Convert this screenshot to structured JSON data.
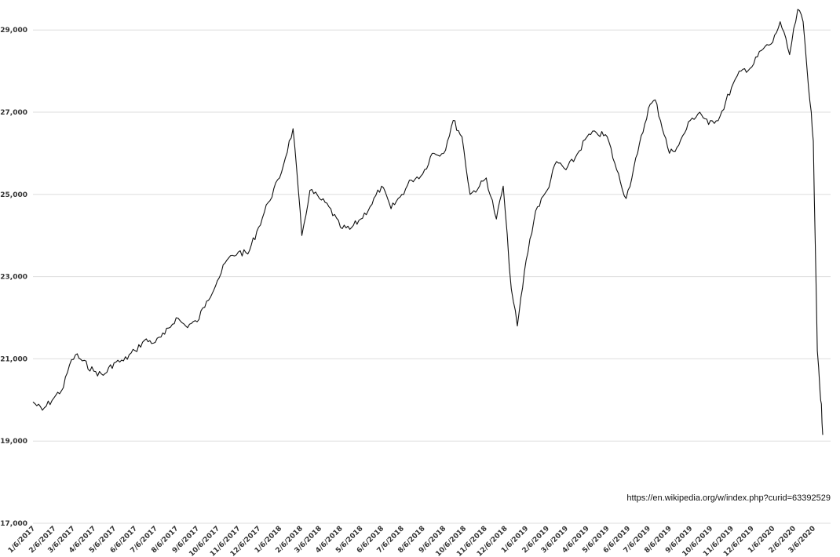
{
  "chart_data": {
    "type": "line",
    "title": "",
    "xlabel": "",
    "ylabel": "",
    "source_note": "https://en.wikipedia.org/w/index.php?curid=63392529",
    "ylim": [
      17000,
      29600
    ],
    "y_ticks": [
      "17,000",
      "19,000",
      "21,000",
      "23,000",
      "25,000",
      "27,000",
      "29,000"
    ],
    "y_tick_values": [
      17000,
      19000,
      21000,
      23000,
      25000,
      27000,
      29000
    ],
    "x_ticks": [
      "1/6/2017",
      "2/6/2017",
      "3/6/2017",
      "4/6/2017",
      "5/6/2017",
      "6/6/2017",
      "7/6/2017",
      "8/6/2017",
      "9/6/2017",
      "10/6/2017",
      "11/6/2017",
      "12/6/2017",
      "1/6/2018",
      "2/6/2018",
      "3/6/2018",
      "4/6/2018",
      "5/6/2018",
      "6/6/2018",
      "7/6/2018",
      "8/6/2018",
      "9/6/2018",
      "10/6/2018",
      "11/6/2018",
      "12/6/2018",
      "1/6/2019",
      "2/6/2019",
      "3/6/2019",
      "4/6/2019",
      "5/6/2019",
      "6/6/2019",
      "7/6/2019",
      "8/6/2019",
      "9/6/2019",
      "10/6/2019",
      "11/6/2019",
      "12/6/2019",
      "1/6/2020",
      "2/6/2020",
      "3/6/2020"
    ],
    "grid": true,
    "line_color": "#111111",
    "series": [
      {
        "x": [
          "2017-01-06",
          "2017-01-20",
          "2017-02-06",
          "2017-02-20",
          "2017-03-01",
          "2017-03-10",
          "2017-03-20",
          "2017-04-06",
          "2017-04-20",
          "2017-05-06",
          "2017-05-20",
          "2017-06-06",
          "2017-06-20",
          "2017-07-06",
          "2017-07-20",
          "2017-08-06",
          "2017-08-20",
          "2017-09-06",
          "2017-09-20",
          "2017-10-06",
          "2017-10-20",
          "2017-11-06",
          "2017-11-20",
          "2017-12-06",
          "2017-12-20",
          "2018-01-06",
          "2018-01-26",
          "2018-02-08",
          "2018-02-20",
          "2018-03-06",
          "2018-03-20",
          "2018-04-06",
          "2018-04-20",
          "2018-05-06",
          "2018-05-20",
          "2018-06-06",
          "2018-06-20",
          "2018-07-06",
          "2018-07-20",
          "2018-08-06",
          "2018-08-20",
          "2018-09-06",
          "2018-09-20",
          "2018-10-03",
          "2018-10-15",
          "2018-10-29",
          "2018-11-08",
          "2018-11-23",
          "2018-12-03",
          "2018-12-15",
          "2018-12-24",
          "2019-01-06",
          "2019-01-20",
          "2019-02-06",
          "2019-02-20",
          "2019-03-06",
          "2019-03-20",
          "2019-04-06",
          "2019-04-20",
          "2019-05-06",
          "2019-05-20",
          "2019-06-03",
          "2019-06-20",
          "2019-07-06",
          "2019-07-16",
          "2019-08-06",
          "2019-08-20",
          "2019-09-06",
          "2019-09-20",
          "2019-10-03",
          "2019-10-20",
          "2019-11-06",
          "2019-11-20",
          "2019-12-06",
          "2019-12-20",
          "2020-01-06",
          "2020-01-17",
          "2020-01-31",
          "2020-02-12",
          "2020-02-20",
          "2020-02-28",
          "2020-03-03",
          "2020-03-06",
          "2020-03-09",
          "2020-03-12",
          "2020-03-16",
          "2020-03-18",
          "2020-03-20"
        ],
        "values": [
          19950,
          19750,
          20050,
          20300,
          20850,
          21100,
          20950,
          20700,
          20600,
          20900,
          20950,
          21200,
          21450,
          21400,
          21600,
          22000,
          21800,
          21900,
          22400,
          22900,
          23400,
          23600,
          23550,
          24200,
          24800,
          25400,
          26600,
          24000,
          25100,
          24900,
          24700,
          24200,
          24150,
          24400,
          24700,
          25200,
          24650,
          25000,
          25350,
          25500,
          26000,
          26000,
          26800,
          26400,
          25000,
          25200,
          25400,
          24400,
          25200,
          22700,
          21800,
          23400,
          24600,
          25100,
          25800,
          25600,
          25900,
          26400,
          26500,
          26400,
          25600,
          24900,
          26000,
          27100,
          27300,
          26000,
          26200,
          26800,
          27000,
          26700,
          26900,
          27600,
          28000,
          28100,
          28500,
          28700,
          29200,
          28400,
          29500,
          29200,
          27600,
          27000,
          26300,
          23800,
          21200,
          20200,
          19900,
          19150
        ]
      }
    ]
  }
}
